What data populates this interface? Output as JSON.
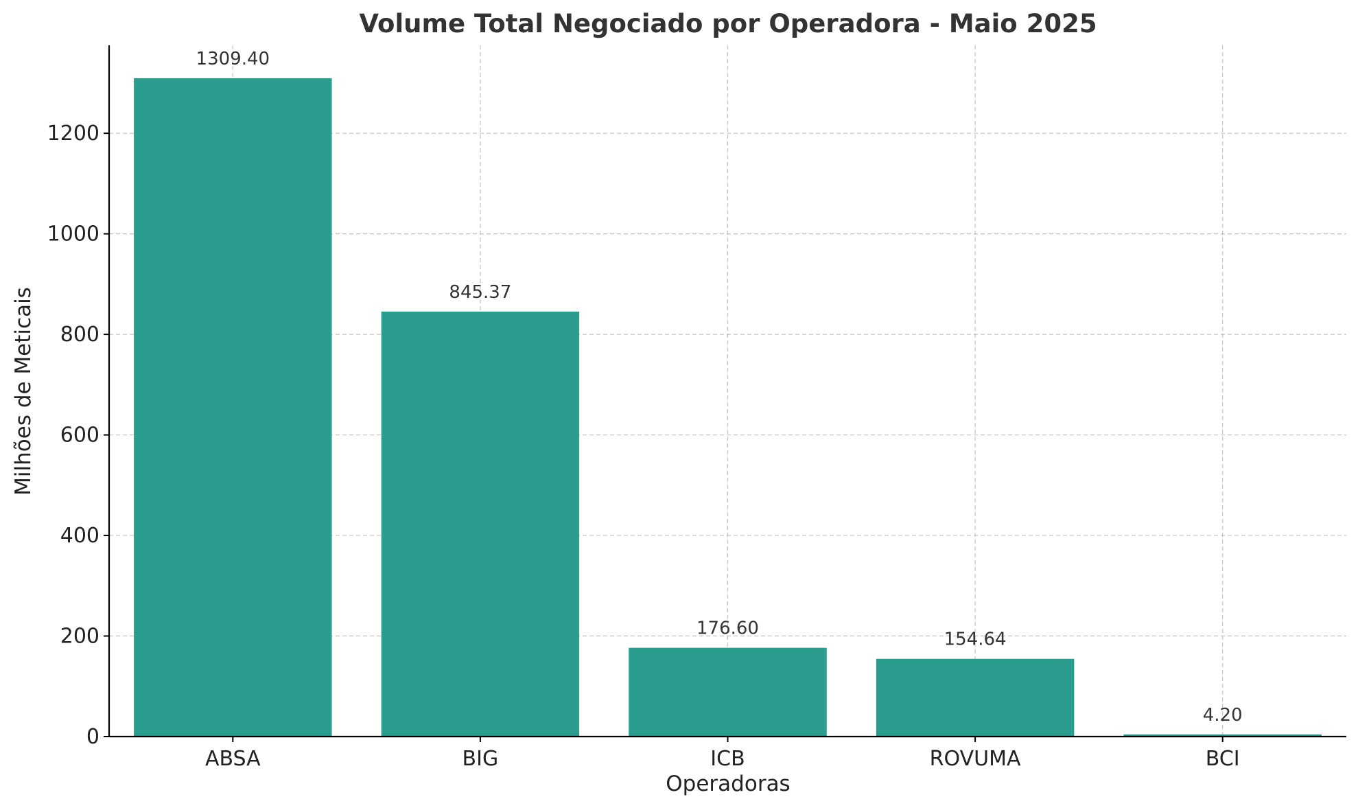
{
  "chart_data": {
    "type": "bar",
    "title": "Volume Total Negociado por Operadora - Maio 2025",
    "xlabel": "Operadoras",
    "ylabel": "Milhões de Meticais",
    "categories": [
      "ABSA",
      "BIG",
      "ICB",
      "ROVUMA",
      "BCI"
    ],
    "values": [
      1309.4,
      845.37,
      176.6,
      154.64,
      4.2
    ],
    "data_labels": [
      "1309.40",
      "845.37",
      "176.60",
      "154.64",
      "4.20"
    ],
    "ylim": [
      0,
      1375
    ],
    "yticks": [
      0,
      200,
      400,
      600,
      800,
      1000,
      1200
    ],
    "ytick_labels": [
      "0",
      "200",
      "400",
      "600",
      "800",
      "1000",
      "1200"
    ],
    "grid": true,
    "bar_color": "#2a9d8f"
  }
}
